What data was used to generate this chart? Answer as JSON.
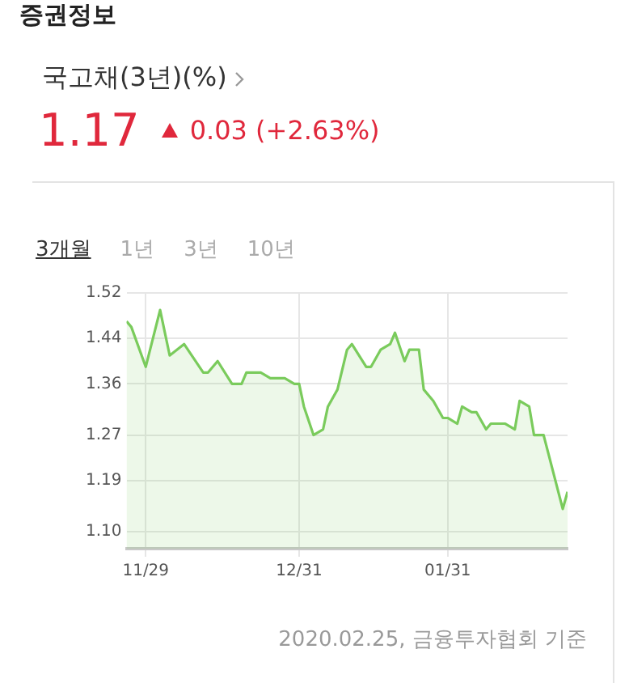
{
  "chart_data": {
    "type": "area",
    "title": "국고채(3년)(%)",
    "subtitle": "1.17",
    "annotations": [
      "증권정보",
      "0.03 (+2.63%)",
      "3개월",
      "1년",
      "3년",
      "10년",
      "2020.02.25, 금융투자협회 기준"
    ],
    "x": [
      "2019-11-25",
      "2019-11-26",
      "2019-11-29",
      "2019-12-02",
      "2019-12-04",
      "2019-12-07",
      "2019-12-11",
      "2019-12-12",
      "2019-12-14",
      "2019-12-17",
      "2019-12-19",
      "2019-12-20",
      "2019-12-23",
      "2019-12-25",
      "2019-12-28",
      "2019-12-30",
      "2019-12-31",
      "2020-01-01",
      "2020-01-03",
      "2020-01-05",
      "2020-01-06",
      "2020-01-08",
      "2020-01-10",
      "2020-01-11",
      "2020-01-14",
      "2020-01-15",
      "2020-01-17",
      "2020-01-19",
      "2020-01-20",
      "2020-01-22",
      "2020-01-23",
      "2020-01-25",
      "2020-01-26",
      "2020-01-28",
      "2020-01-30",
      "2020-01-31",
      "2020-02-02",
      "2020-02-03",
      "2020-02-05",
      "2020-02-06",
      "2020-02-08",
      "2020-02-09",
      "2020-02-12",
      "2020-02-14",
      "2020-02-15",
      "2020-02-17",
      "2020-02-18",
      "2020-02-20",
      "2020-02-24",
      "2020-02-25"
    ],
    "values": [
      1.47,
      1.46,
      1.39,
      1.49,
      1.41,
      1.43,
      1.38,
      1.38,
      1.4,
      1.36,
      1.36,
      1.38,
      1.38,
      1.37,
      1.37,
      1.36,
      1.36,
      1.32,
      1.27,
      1.28,
      1.32,
      1.35,
      1.42,
      1.43,
      1.39,
      1.39,
      1.42,
      1.43,
      1.45,
      1.4,
      1.42,
      1.42,
      1.35,
      1.33,
      1.3,
      1.3,
      1.29,
      1.32,
      1.31,
      1.31,
      1.28,
      1.29,
      1.29,
      1.28,
      1.33,
      1.32,
      1.27,
      1.27,
      1.14,
      1.17
    ],
    "color": "#7acb5c",
    "xlim": [
      "2019-11-25",
      "2020-02-25"
    ],
    "xticks": [
      {
        "value": "2019-11-29",
        "label": "11/29"
      },
      {
        "value": "2019-12-31",
        "label": "12/31"
      },
      {
        "value": "2020-01-31",
        "label": "01/31"
      }
    ],
    "ylim": [
      1.07,
      1.52
    ],
    "yticks": [
      {
        "value": 1.1,
        "label": "1.10"
      },
      1.19,
      1.27,
      1.36,
      1.44,
      1.52
    ],
    "grid": true,
    "legend": false,
    "marker": "none"
  }
}
